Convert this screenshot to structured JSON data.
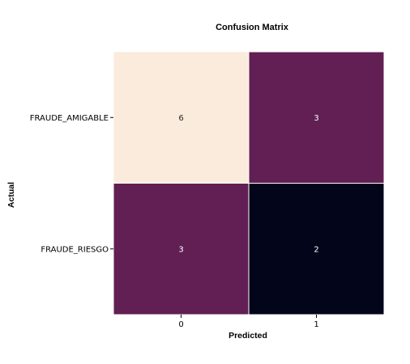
{
  "chart_data": {
    "type": "heatmap",
    "title": "Confusion Matrix",
    "xlabel": "Predicted",
    "ylabel": "Actual",
    "row_labels": [
      "FRAUDE_AMIGABLE",
      "FRAUDE_RIESGO "
    ],
    "col_labels": [
      "0",
      "1"
    ],
    "values": [
      [
        6,
        3
      ],
      [
        3,
        2
      ]
    ],
    "vmin": 2,
    "vmax": 6,
    "colorbar": false,
    "colors": {
      "high": "#faebdd",
      "mid": "#611f53",
      "low": "#03051a",
      "annotation_on_light": "#262626",
      "annotation_on_dark": "#ffffff",
      "cell_border": "#ffffff"
    }
  }
}
